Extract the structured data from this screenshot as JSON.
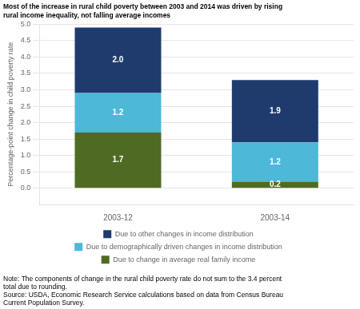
{
  "chart_data": {
    "type": "bar",
    "title": [
      "Most of the increase in rural child poverty between 2003 and 2014 was driven by rising",
      "rural income inequality, not falling average incomes"
    ],
    "ylabel": "Percentage-point change in child poverty rate",
    "categories": [
      "2003-12",
      "2003-14"
    ],
    "series": [
      {
        "name": "Due to change in average real\nfamily income",
        "color": "#4f6b22",
        "values": [
          1.7,
          0.2
        ],
        "value_labels": [
          "1.7",
          "0.2"
        ]
      },
      {
        "name": "Due to demographically driven\nchanges in income distribution",
        "color": "#4db8d8",
        "values": [
          1.2,
          1.2
        ],
        "value_labels": [
          "1.2",
          "1.2"
        ]
      },
      {
        "name": "Due to other changes in\nincome distribution",
        "color": "#1f3b6e",
        "values": [
          2.0,
          1.9
        ],
        "value_labels": [
          "2.0",
          "1.9"
        ]
      }
    ],
    "ylim": [
      -0.5,
      5.0
    ],
    "yticks": [
      {
        "value": 0,
        "label": "0.0"
      },
      0.5,
      {
        "value": 1,
        "label": "1.0"
      },
      1.5,
      {
        "value": 2,
        "label": "2.0"
      },
      2.5,
      {
        "value": 3,
        "label": "3.0"
      },
      3.5,
      {
        "value": 4,
        "label": "4.0"
      },
      4.5,
      {
        "value": 5,
        "label": "5.0"
      }
    ],
    "stacked": true,
    "data_labels": true,
    "grid": true,
    "legend": "bottom",
    "note": [
      "Note: The components of change in the rural child poverty rate do not sum to the 3.4 percent",
      "total due to rounding.",
      "Source: USDA, Economic Research Service calculations based on data from Census Bureau",
      "Current Population Survey."
    ]
  }
}
